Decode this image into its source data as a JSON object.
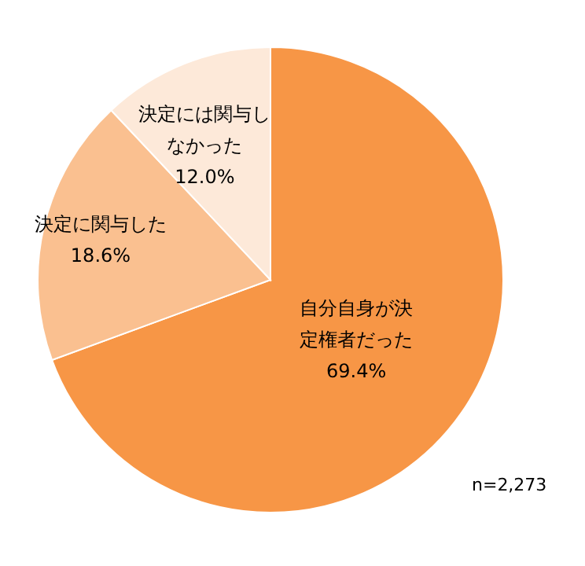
{
  "chart_data": {
    "type": "pie",
    "categories": [
      "自分自身が決定権者だった",
      "決定に関与した",
      "決定には関与しなかった"
    ],
    "values": [
      69.4,
      18.6,
      12.0
    ],
    "colors": [
      "#f79646",
      "#fac090",
      "#fde9d9"
    ],
    "value_labels": [
      "69.4%",
      "18.6%",
      "12.0%"
    ],
    "annotations": [
      "n=2,273"
    ]
  }
}
